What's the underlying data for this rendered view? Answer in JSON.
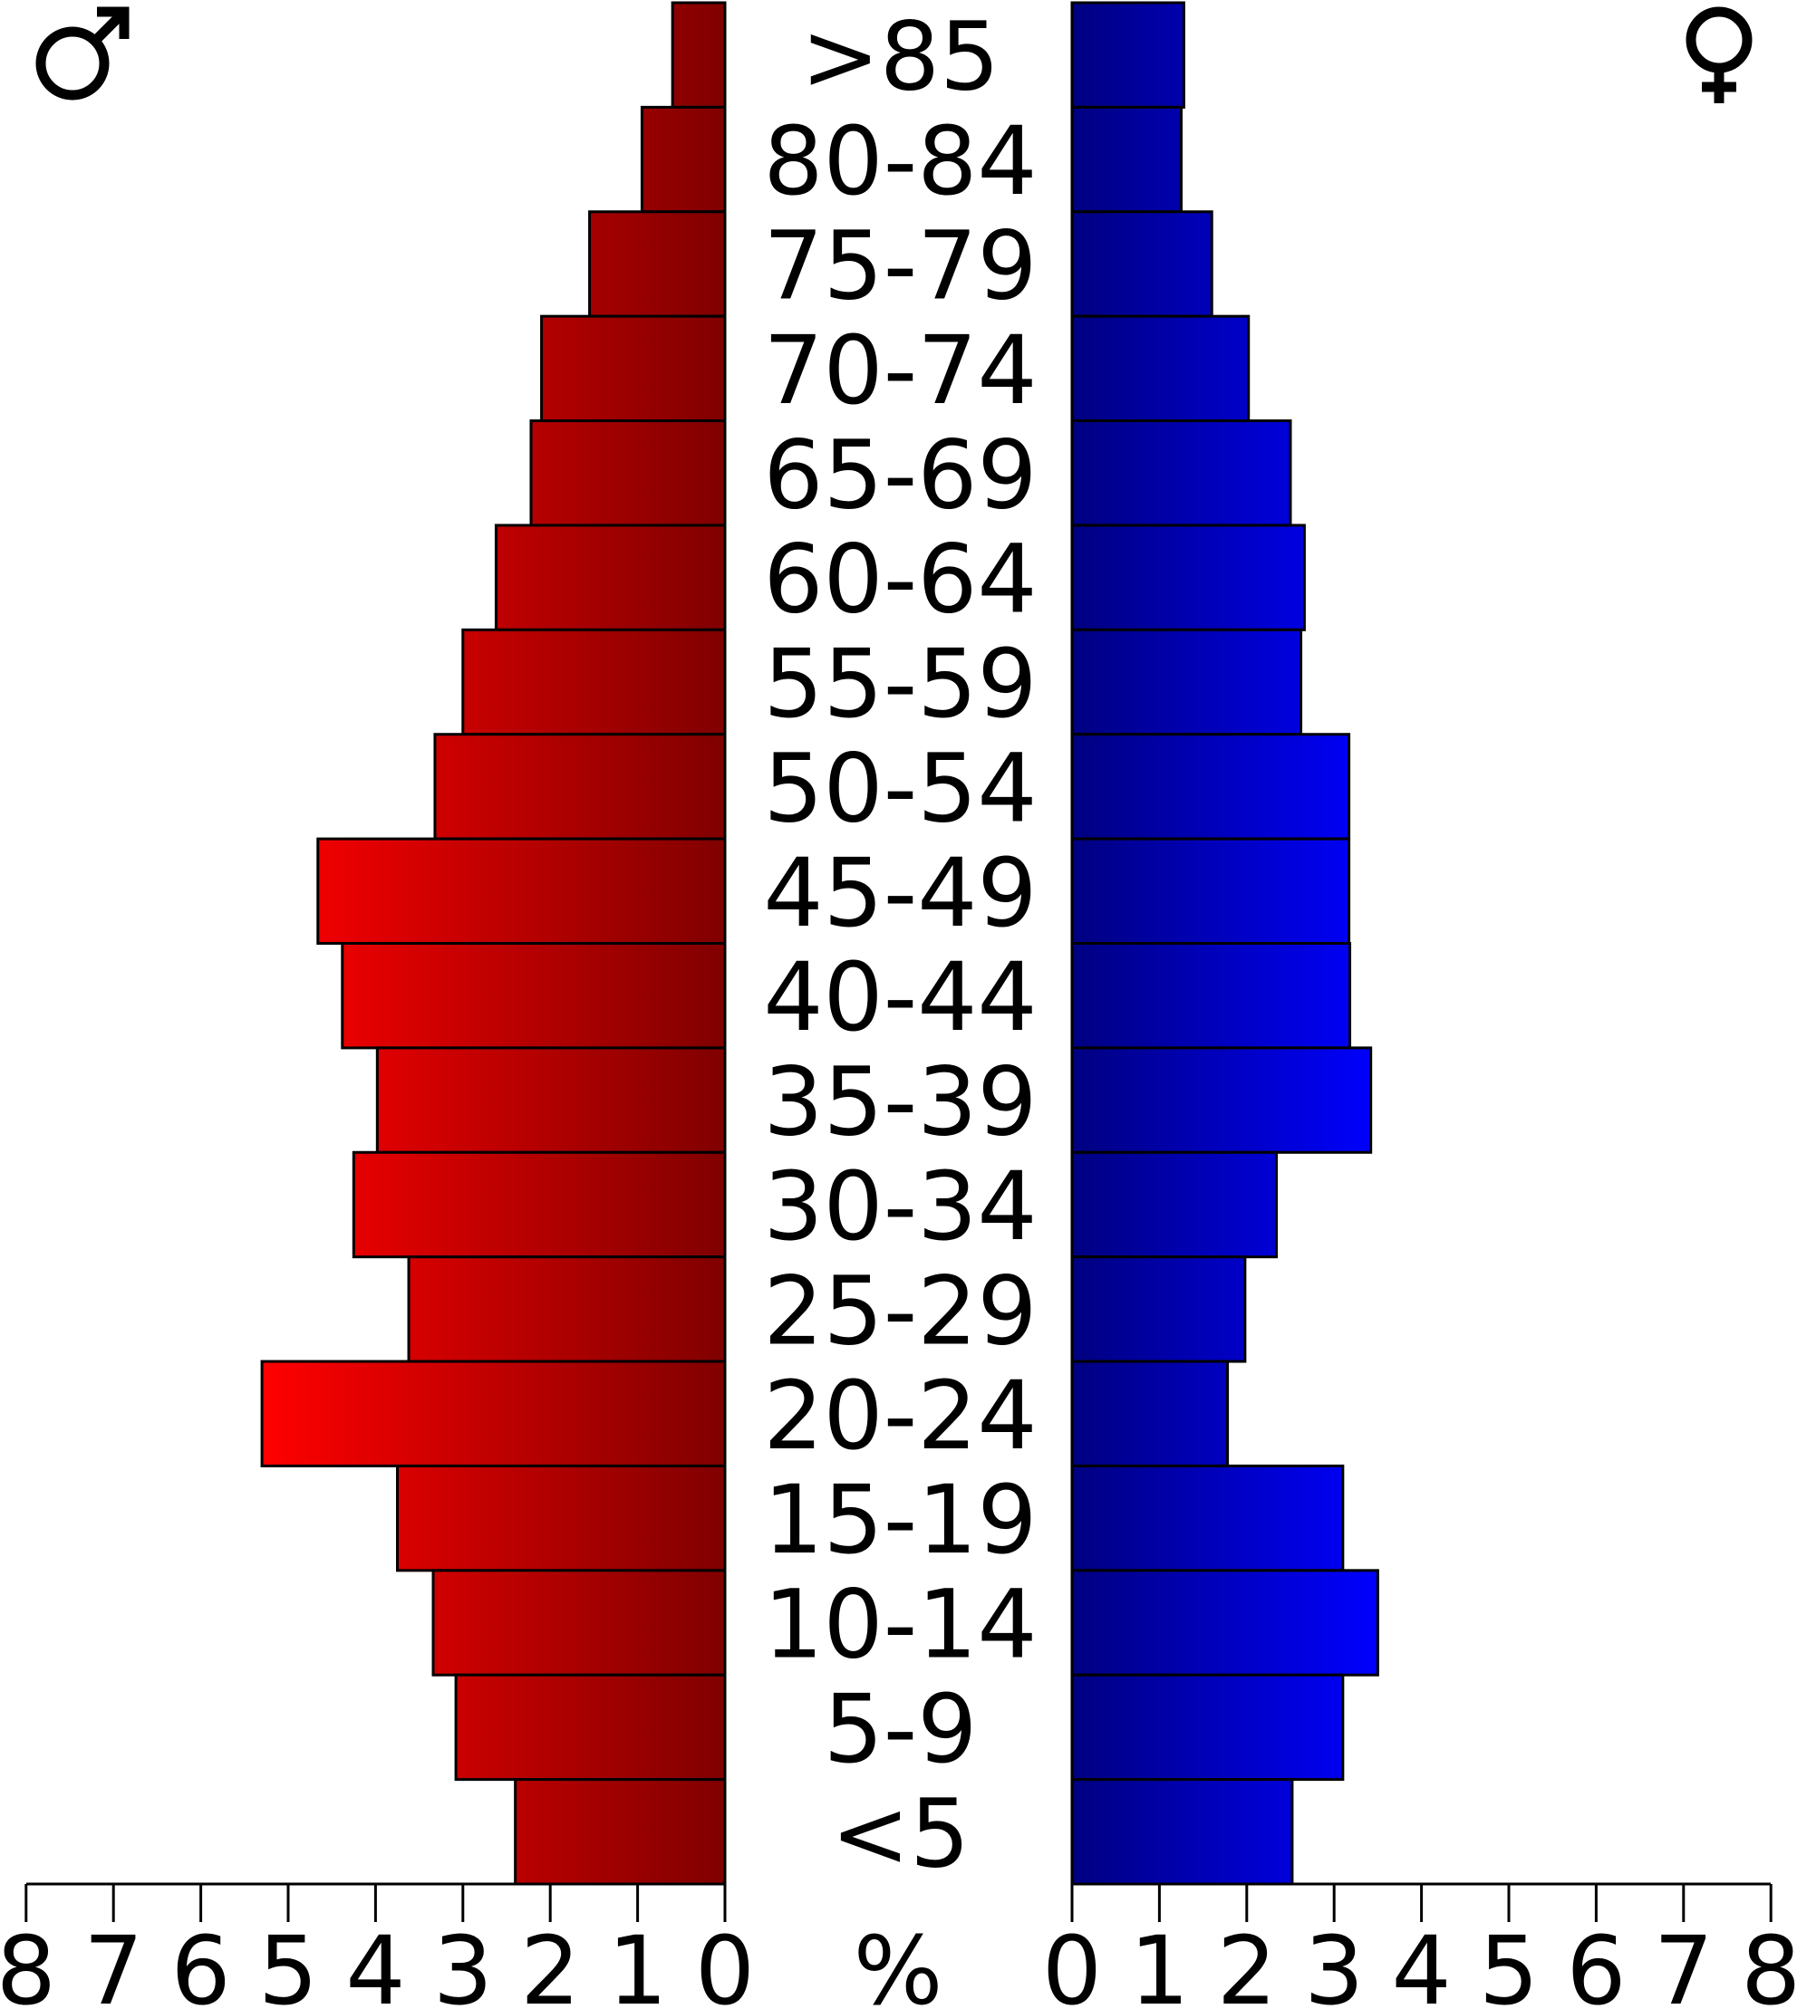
{
  "chart_data": {
    "type": "bar",
    "orientation": "horizontal-population-pyramid",
    "categories": [
      ">85",
      "80-84",
      "75-79",
      "70-74",
      "65-69",
      "60-64",
      "55-59",
      "50-54",
      "45-49",
      "40-44",
      "35-39",
      "30-34",
      "25-29",
      "20-24",
      "15-19",
      "10-14",
      "5-9",
      "<5"
    ],
    "series": [
      {
        "symbol": "♂",
        "color_light": "#ff0000",
        "color_dark": "#800000",
        "side": "left",
        "values": [
          0.6,
          0.95,
          1.55,
          2.1,
          2.22,
          2.62,
          3.0,
          3.32,
          4.66,
          4.38,
          3.98,
          4.25,
          3.62,
          5.3,
          3.75,
          3.34,
          3.08,
          2.4
        ]
      },
      {
        "symbol": "♀",
        "color_light": "#0000ff",
        "color_dark": "#000080",
        "side": "right",
        "values": [
          1.28,
          1.25,
          1.6,
          2.02,
          2.5,
          2.66,
          2.62,
          3.17,
          3.17,
          3.18,
          3.42,
          2.34,
          1.98,
          1.78,
          3.1,
          3.5,
          3.1,
          2.52
        ]
      }
    ],
    "x_ticks": [
      "8",
      "7",
      "6",
      "5",
      "4",
      "3",
      "2",
      "1",
      "0"
    ],
    "x_ticks_right": [
      "0",
      "1",
      "2",
      "3",
      "4",
      "5",
      "6",
      "7",
      "8"
    ],
    "xlabel": "%",
    "xlim": [
      0,
      8
    ]
  }
}
